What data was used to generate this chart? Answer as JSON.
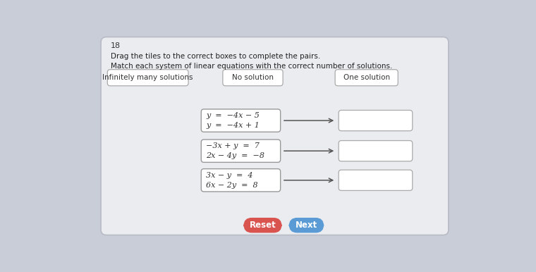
{
  "page_number": "18",
  "instruction1": "Drag the tiles to the correct boxes to complete the pairs.",
  "instruction2": "Match each system of linear equations with the correct number of solutions.",
  "solution_labels": [
    "Infinitely many solutions",
    "No solution",
    "One solution"
  ],
  "systems": [
    {
      "line1": "y  =  −4x − 5",
      "line2": "y  =  −4x + 1"
    },
    {
      "line1": "−3x + y  =  7",
      "line2": "2x − 4y  =  −8"
    },
    {
      "line1": "3x − y  =  4",
      "line2": "6x − 2y  =  8"
    }
  ],
  "button_reset_color": "#d9534f",
  "button_next_color": "#5b9bd5",
  "bg_color": "#c8cdd8",
  "card_bg": "#eaecf0",
  "card_border": "#b8bbc5",
  "answer_box_bg": "#ffffff",
  "answer_box_border": "#aaaaaa",
  "eq_box_bg": "#ffffff",
  "eq_box_border": "#999999",
  "label_box_bg": "#ffffff",
  "label_box_border": "#aaaaaa",
  "arrow_color": "#555555",
  "title_color": "#222222",
  "text_color": "#333333",
  "label_color": "#333333",
  "num_color": "#333333"
}
